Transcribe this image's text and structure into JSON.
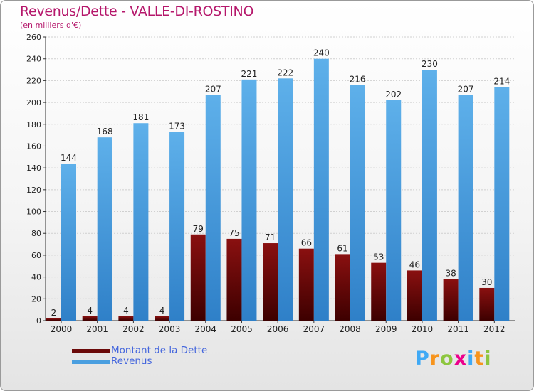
{
  "header": {
    "title": "Revenus/Dette - VALLE-DI-ROSTINO",
    "subtitle": "(en milliers d'€)"
  },
  "legend": [
    {
      "label": "Montant de la Dette",
      "color": "#6b0a0a"
    },
    {
      "label": "Revenus",
      "color": "#4a9fe0"
    }
  ],
  "logo": {
    "text": "Proxiti",
    "letters": [
      "P",
      "r",
      "o",
      "x",
      "i",
      "t",
      "i"
    ],
    "colors": [
      "#3fa9f5",
      "#f7941d",
      "#8dc63f",
      "#ec008c",
      "#3fa9f5",
      "#f7941d",
      "#8dc63f"
    ]
  },
  "colors": {
    "title": "#b5176b",
    "dette": "#6b0a0a",
    "revenus": "#4a9fe0"
  },
  "chart_data": {
    "type": "bar",
    "title": "Revenus/Dette - VALLE-DI-ROSTINO",
    "ylabel": "(en milliers d'€)",
    "xlabel": "",
    "categories": [
      "2000",
      "2001",
      "2002",
      "2003",
      "2004",
      "2005",
      "2006",
      "2007",
      "2008",
      "2009",
      "2010",
      "2011",
      "2012"
    ],
    "series": [
      {
        "name": "Montant de la Dette",
        "values": [
          2,
          4,
          4,
          4,
          79,
          75,
          71,
          66,
          61,
          53,
          46,
          38,
          30
        ]
      },
      {
        "name": "Revenus",
        "values": [
          144,
          168,
          181,
          173,
          207,
          221,
          222,
          240,
          216,
          202,
          230,
          207,
          214
        ]
      }
    ],
    "ylim": [
      0,
      260
    ],
    "yticks": [
      0,
      20,
      40,
      60,
      80,
      100,
      120,
      140,
      160,
      180,
      200,
      220,
      240,
      260
    ],
    "grid": true,
    "legend_position": "bottom-left"
  }
}
